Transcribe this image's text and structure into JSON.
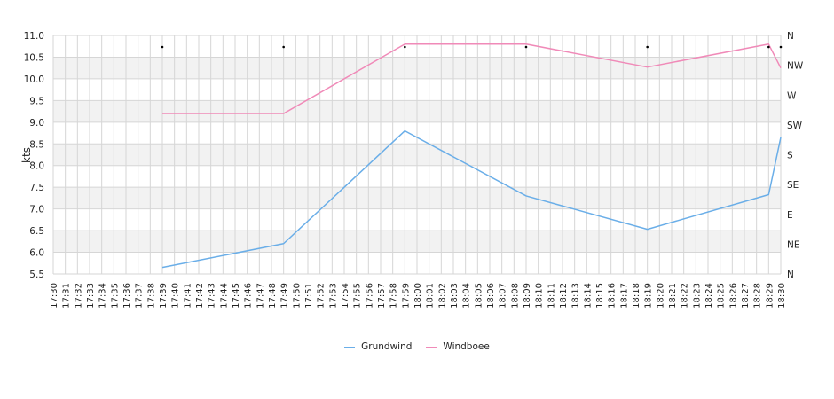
{
  "chart_data": {
    "type": "line",
    "xlabel": "",
    "ylabel": "kts",
    "ylim": [
      5.5,
      11.0
    ],
    "yticks": [
      "5.5",
      "6.0",
      "6.5",
      "7.0",
      "7.5",
      "8.0",
      "8.5",
      "9.0",
      "9.5",
      "10.0",
      "10.5",
      "11.0"
    ],
    "y2_ticks": [
      "N",
      "NE",
      "E",
      "SE",
      "S",
      "SW",
      "W",
      "NW",
      "N"
    ],
    "x_categories": [
      "17:30",
      "17:31",
      "17:32",
      "17:33",
      "17:34",
      "17:35",
      "17:36",
      "17:37",
      "17:38",
      "17:39",
      "17:40",
      "17:41",
      "17:42",
      "17:43",
      "17:44",
      "17:45",
      "17:46",
      "17:47",
      "17:48",
      "17:49",
      "17:50",
      "17:51",
      "17:52",
      "17:53",
      "17:54",
      "17:55",
      "17:56",
      "17:57",
      "17:58",
      "17:59",
      "18:00",
      "18:01",
      "18:02",
      "18:03",
      "18:04",
      "18:05",
      "18:06",
      "18:07",
      "18:08",
      "18:09",
      "18:10",
      "18:11",
      "18:12",
      "18:13",
      "18:14",
      "18:15",
      "18:16",
      "18:17",
      "18:18",
      "18:19",
      "18:20",
      "18:21",
      "18:22",
      "18:23",
      "18:24",
      "18:25",
      "18:26",
      "18:27",
      "18:28",
      "18:29",
      "18:30"
    ],
    "series": [
      {
        "name": "Grundwind",
        "color": "#6aaee8",
        "points": [
          [
            "17:39",
            5.65
          ],
          [
            "17:49",
            6.2
          ],
          [
            "17:59",
            8.8
          ],
          [
            "18:09",
            7.3
          ],
          [
            "18:19",
            6.53
          ],
          [
            "18:29",
            7.33
          ],
          [
            "18:30",
            8.65
          ]
        ]
      },
      {
        "name": "Windboee",
        "color": "#f08ab8",
        "points": [
          [
            "17:39",
            9.2
          ],
          [
            "17:49",
            9.2
          ],
          [
            "17:59",
            10.8
          ],
          [
            "18:09",
            10.8
          ],
          [
            "18:19",
            10.27
          ],
          [
            "18:29",
            10.8
          ],
          [
            "18:30",
            10.25
          ]
        ]
      }
    ],
    "direction_markers": [
      [
        "17:39",
        "N"
      ],
      [
        "17:49",
        "N"
      ],
      [
        "17:59",
        "N"
      ],
      [
        "18:09",
        "N"
      ],
      [
        "18:19",
        "N"
      ],
      [
        "18:29",
        "N"
      ],
      [
        "18:30",
        "N"
      ]
    ],
    "grid": true,
    "legend": "bottom-center"
  }
}
